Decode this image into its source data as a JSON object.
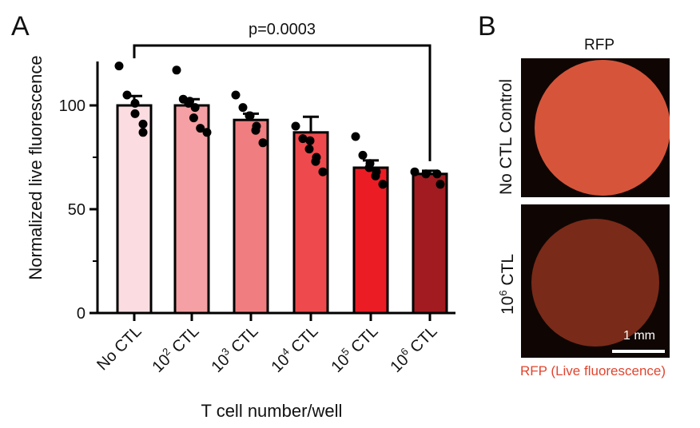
{
  "panels": {
    "a": "A",
    "b": "B"
  },
  "chart_data": {
    "type": "bar",
    "categories": [
      {
        "base": "No CTL",
        "exp": "",
        "suffix": ""
      },
      {
        "base": "10",
        "exp": "2",
        "suffix": " CTL"
      },
      {
        "base": "10",
        "exp": "3",
        "suffix": " CTL"
      },
      {
        "base": "10",
        "exp": "4",
        "suffix": " CTL"
      },
      {
        "base": "10",
        "exp": "5",
        "suffix": " CTL"
      },
      {
        "base": "10",
        "exp": "6",
        "suffix": " CTL"
      }
    ],
    "values": [
      100,
      100,
      93,
      87,
      70,
      67
    ],
    "errors": [
      4.5,
      3,
      3,
      7.5,
      3.5,
      1.5
    ],
    "points": [
      [
        119,
        105,
        101,
        96,
        91,
        87
      ],
      [
        117,
        103,
        102,
        101,
        99,
        94,
        89,
        87
      ],
      [
        105,
        99,
        95,
        95,
        90,
        88,
        82
      ],
      [
        90,
        84,
        83,
        79,
        75,
        73,
        68
      ],
      [
        85,
        76,
        72,
        70,
        68,
        66,
        62
      ],
      [
        68,
        67,
        67,
        62
      ]
    ],
    "colors": [
      "#fbdde1",
      "#f4a0a4",
      "#f07d80",
      "#ee4a4d",
      "#ec1c24",
      "#a11b20"
    ],
    "ylabel": "Normalized live fluorescence",
    "xlabel": "T cell number/well",
    "ylim": [
      0,
      120
    ],
    "yticks": [
      0,
      50,
      100
    ],
    "annotation": {
      "text": "p=0.0003",
      "from": 0,
      "to": 5
    }
  },
  "images": {
    "title": "RFP",
    "top_label": "No CTL Control",
    "bottom_label": {
      "base": "10",
      "exp": "6",
      "suffix": " CTL"
    },
    "scale": "1 mm",
    "caption": "RFP (Live fluorescence)",
    "colors": {
      "top": "#d6553a",
      "bottom": "#7a2a18"
    }
  }
}
